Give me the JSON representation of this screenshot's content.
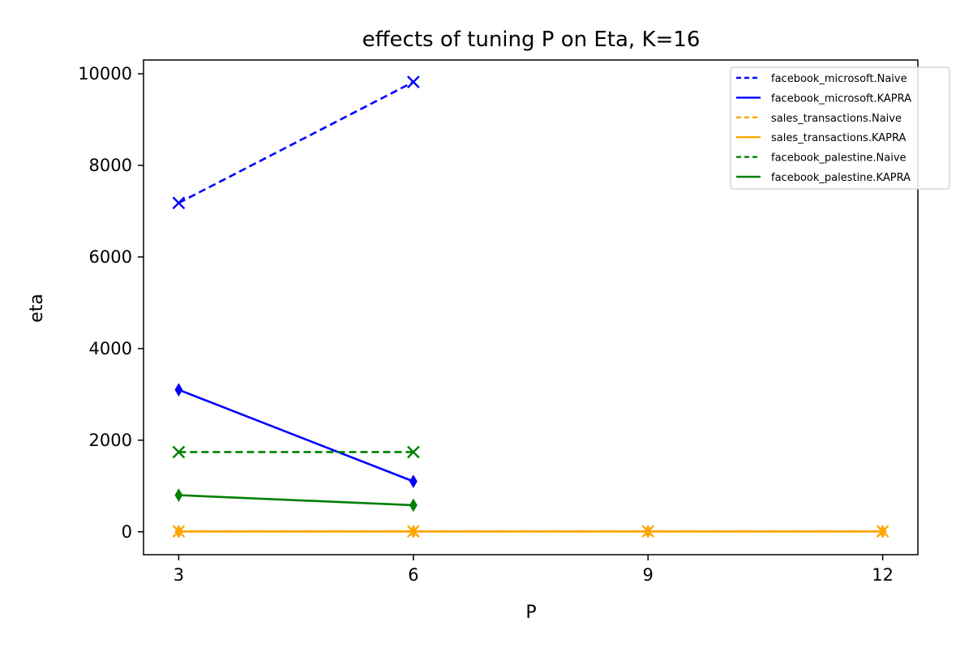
{
  "chart_data": {
    "type": "line",
    "title": "effects of tuning P on Eta, K=16",
    "xlabel": "P",
    "ylabel": "eta",
    "xlim": [
      2.55,
      12.45
    ],
    "ylim": [
      -500,
      10300
    ],
    "xticks": [
      3,
      6,
      9,
      12
    ],
    "yticks": [
      0,
      2000,
      4000,
      6000,
      8000,
      10000
    ],
    "grid": false,
    "legend_position": "top-right",
    "series": [
      {
        "name": "facebook_microsoft.Naive",
        "color": "#0000ff",
        "linestyle": "dashed",
        "marker": "x",
        "x": [
          3,
          6
        ],
        "y": [
          7180,
          9820
        ]
      },
      {
        "name": "facebook_microsoft.KAPRA",
        "color": "#0000ff",
        "linestyle": "solid",
        "marker": "diamond",
        "x": [
          3,
          6
        ],
        "y": [
          3100,
          1100
        ]
      },
      {
        "name": "sales_transactions.Naive",
        "color": "#ffa500",
        "linestyle": "dashed",
        "marker": "x",
        "x": [
          3,
          6,
          9,
          12
        ],
        "y": [
          10,
          10,
          10,
          10
        ]
      },
      {
        "name": "sales_transactions.KAPRA",
        "color": "#ffa500",
        "linestyle": "solid",
        "marker": "diamond",
        "x": [
          3,
          6,
          9,
          12
        ],
        "y": [
          5,
          5,
          5,
          5
        ]
      },
      {
        "name": "facebook_palestine.Naive",
        "color": "#008000",
        "linestyle": "dashed",
        "marker": "x",
        "x": [
          3,
          6
        ],
        "y": [
          1740,
          1740
        ]
      },
      {
        "name": "facebook_palestine.KAPRA",
        "color": "#008000",
        "linestyle": "solid",
        "marker": "diamond",
        "x": [
          3,
          6
        ],
        "y": [
          800,
          580
        ]
      }
    ]
  }
}
